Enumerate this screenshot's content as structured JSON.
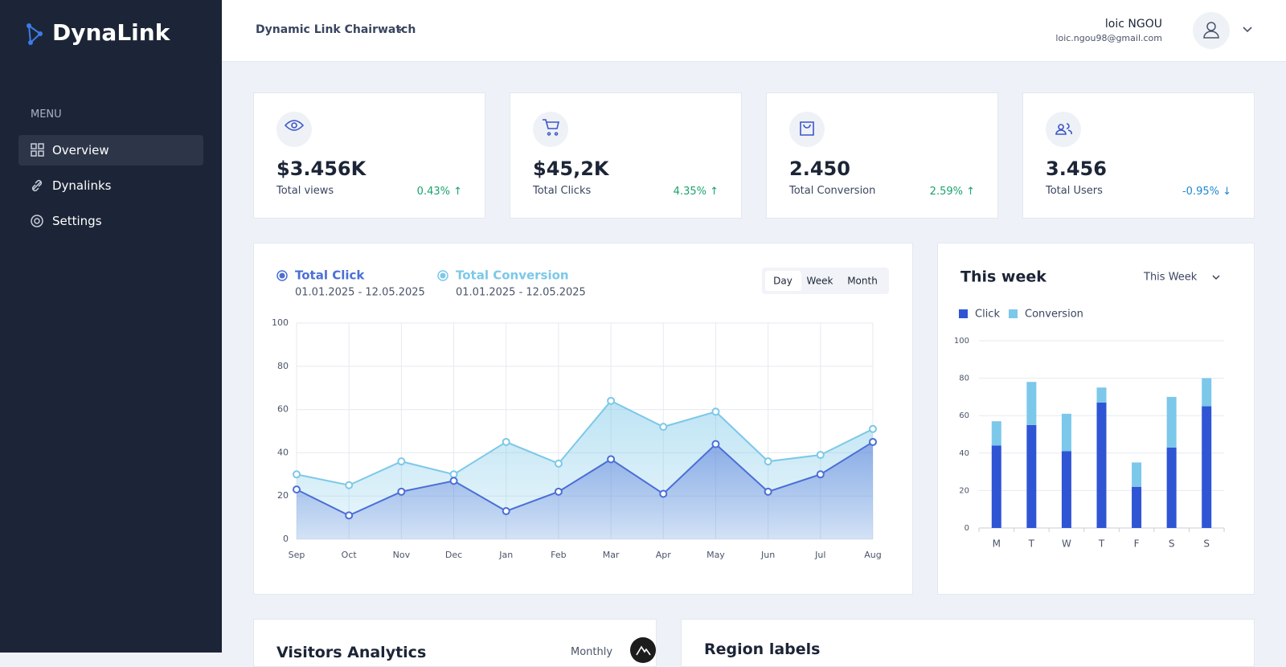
{
  "sidebar": {
    "logo": "DynaLink",
    "menu_label": "MENU",
    "items": [
      "Overview",
      "Dynalinks",
      "Settings"
    ]
  },
  "header": {
    "project": "Dynamic Link Chairwatch",
    "user_name": "loic NGOU",
    "user_email": "loic.ngou98@gmail.com"
  },
  "stats": [
    {
      "value": "$3.456K",
      "label": "Total views",
      "change": "0.43% ↑",
      "color": "#1aa36a"
    },
    {
      "value": "$45,2K",
      "label": "Total Clicks",
      "change": "4.35% ↑",
      "color": "#1aa36a"
    },
    {
      "value": "2.450",
      "label": "Total Conversion",
      "change": "2.59% ↑",
      "color": "#1aa36a"
    },
    {
      "value": "3.456",
      "label": "Total Users",
      "change": "-0.95% ↓",
      "color": "#1e88d0"
    }
  ],
  "chart_data": [
    {
      "type": "line",
      "tabs": [
        "Day",
        "Week",
        "Month"
      ],
      "categories": [
        "Sep",
        "Oct",
        "Nov",
        "Dec",
        "Jan",
        "Feb",
        "Mar",
        "Apr",
        "May",
        "Jun",
        "Jul",
        "Aug"
      ],
      "series": [
        {
          "name": "Total Click",
          "date_range": "01.01.2025 - 12.05.2025",
          "color": "#4a6fd6",
          "values": [
            23,
            11,
            22,
            27,
            13,
            22,
            37,
            21,
            44,
            22,
            30,
            45
          ]
        },
        {
          "name": "Total Conversion",
          "date_range": "01.01.2025 - 12.05.2025",
          "color": "#7cc8e8",
          "values": [
            30,
            25,
            36,
            30,
            45,
            35,
            64,
            52,
            59,
            36,
            39,
            51
          ]
        }
      ],
      "ylim": [
        0,
        100
      ],
      "yticks": [
        0,
        20,
        40,
        60,
        80,
        100
      ],
      "grid": true
    },
    {
      "type": "stacked_bar",
      "title": "This week",
      "dropdown": "This Week",
      "categories": [
        "M",
        "T",
        "W",
        "T",
        "F",
        "S",
        "S"
      ],
      "series": [
        {
          "name": "Click",
          "color": "#2f55d4",
          "values": [
            44,
            55,
            41,
            67,
            22,
            43,
            65
          ]
        },
        {
          "name": "Conversion",
          "color": "#7cc8ea",
          "values": [
            13,
            23,
            20,
            8,
            13,
            27,
            15
          ]
        }
      ],
      "ylim": [
        0,
        100
      ],
      "yticks": [
        0,
        20,
        40,
        60,
        80,
        100
      ],
      "grid": true
    }
  ],
  "bottom_cards": [
    {
      "title": "Visitors Analytics",
      "dropdown": "Monthly"
    },
    {
      "title": "Region labels"
    }
  ]
}
